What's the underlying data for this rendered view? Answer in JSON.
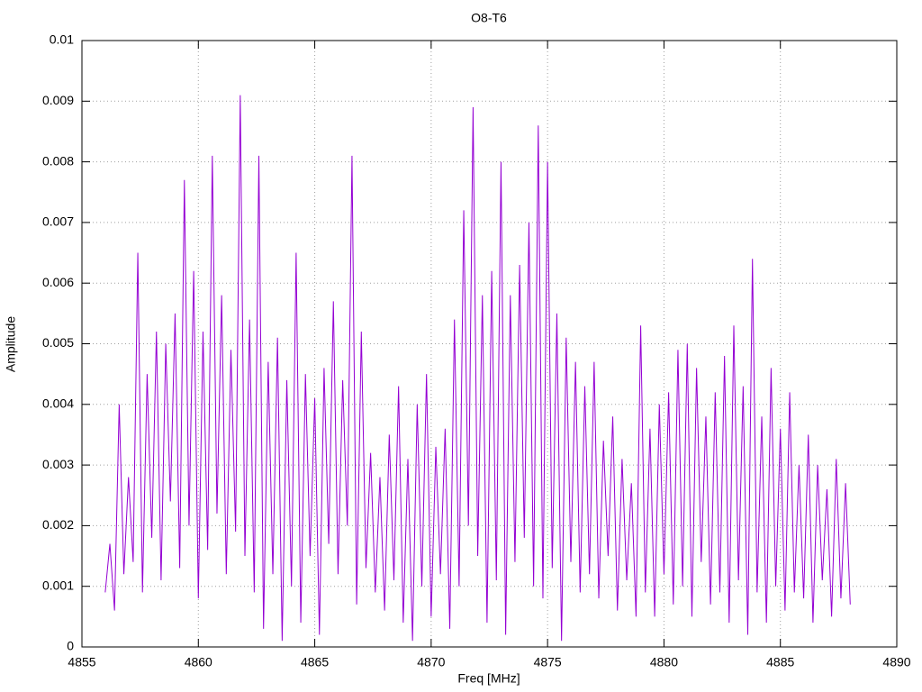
{
  "chart_data": {
    "type": "line",
    "title": "O8-T6",
    "x_label": "Freq [MHz]",
    "y_label": "Amplitude",
    "xlim": [
      4855,
      4890
    ],
    "xticks": [
      4855,
      4860,
      4865,
      4870,
      4875,
      4880,
      4885,
      4890
    ],
    "ylim": [
      0,
      0.01
    ],
    "yticks": [
      0,
      0.001,
      0.002,
      0.003,
      0.004,
      0.005,
      0.006,
      0.007,
      0.008,
      0.009,
      0.01
    ],
    "grid": true,
    "x": [
      4856.0,
      4856.2,
      4856.4,
      4856.6,
      4856.8,
      4857.0,
      4857.2,
      4857.4,
      4857.6,
      4857.8,
      4858.0,
      4858.2,
      4858.4,
      4858.6,
      4858.8,
      4859.0,
      4859.2,
      4859.4,
      4859.6,
      4859.8,
      4860.0,
      4860.2,
      4860.4,
      4860.6,
      4860.8,
      4861.0,
      4861.2,
      4861.4,
      4861.6,
      4861.8,
      4862.0,
      4862.2,
      4862.4,
      4862.6,
      4862.8,
      4863.0,
      4863.2,
      4863.4,
      4863.6,
      4863.8,
      4864.0,
      4864.2,
      4864.4,
      4864.6,
      4864.8,
      4865.0,
      4865.2,
      4865.4,
      4865.6,
      4865.8,
      4866.0,
      4866.2,
      4866.4,
      4866.6,
      4866.8,
      4867.0,
      4867.2,
      4867.4,
      4867.6,
      4867.8,
      4868.0,
      4868.2,
      4868.4,
      4868.6,
      4868.8,
      4869.0,
      4869.2,
      4869.4,
      4869.6,
      4869.8,
      4870.0,
      4870.2,
      4870.4,
      4870.6,
      4870.8,
      4871.0,
      4871.2,
      4871.4,
      4871.6,
      4871.8,
      4872.0,
      4872.2,
      4872.4,
      4872.6,
      4872.8,
      4873.0,
      4873.2,
      4873.4,
      4873.6,
      4873.8,
      4874.0,
      4874.2,
      4874.4,
      4874.6,
      4874.8,
      4875.0,
      4875.2,
      4875.4,
      4875.6,
      4875.8,
      4876.0,
      4876.2,
      4876.4,
      4876.6,
      4876.8,
      4877.0,
      4877.2,
      4877.4,
      4877.6,
      4877.8,
      4878.0,
      4878.2,
      4878.4,
      4878.6,
      4878.8,
      4879.0,
      4879.2,
      4879.4,
      4879.6,
      4879.8,
      4880.0,
      4880.2,
      4880.4,
      4880.6,
      4880.8,
      4881.0,
      4881.2,
      4881.4,
      4881.6,
      4881.8,
      4882.0,
      4882.2,
      4882.4,
      4882.6,
      4882.8,
      4883.0,
      4883.2,
      4883.4,
      4883.6,
      4883.8,
      4884.0,
      4884.2,
      4884.4,
      4884.6,
      4884.8,
      4885.0,
      4885.2,
      4885.4,
      4885.6,
      4885.8,
      4886.0,
      4886.2,
      4886.4,
      4886.6,
      4886.8,
      4887.0,
      4887.2,
      4887.4,
      4887.6,
      4887.8,
      4888.0
    ],
    "series": [
      {
        "color": "#9400d3",
        "values": [
          0.0009,
          0.0017,
          0.0006,
          0.004,
          0.0012,
          0.0028,
          0.0014,
          0.0065,
          0.0009,
          0.0045,
          0.0018,
          0.0052,
          0.0011,
          0.005,
          0.0024,
          0.0055,
          0.0013,
          0.0077,
          0.002,
          0.0062,
          0.0008,
          0.0052,
          0.0016,
          0.0081,
          0.0022,
          0.0058,
          0.0012,
          0.0049,
          0.0019,
          0.0091,
          0.0015,
          0.0054,
          0.0009,
          0.0081,
          0.0003,
          0.0047,
          0.0012,
          0.0051,
          0.0001,
          0.0044,
          0.001,
          0.0065,
          0.0004,
          0.0045,
          0.0015,
          0.0041,
          0.0002,
          0.0046,
          0.0017,
          0.0057,
          0.0012,
          0.0044,
          0.002,
          0.0081,
          0.0007,
          0.0052,
          0.0013,
          0.0032,
          0.0009,
          0.0028,
          0.0006,
          0.0035,
          0.0011,
          0.0043,
          0.0004,
          0.0031,
          0.0001,
          0.004,
          0.001,
          0.0045,
          0.0005,
          0.0033,
          0.0012,
          0.0036,
          0.0003,
          0.0054,
          0.001,
          0.0072,
          0.002,
          0.0089,
          0.0015,
          0.0058,
          0.0004,
          0.0062,
          0.0011,
          0.008,
          0.0002,
          0.0058,
          0.0014,
          0.0063,
          0.0018,
          0.007,
          0.001,
          0.0086,
          0.0008,
          0.008,
          0.0013,
          0.0055,
          0.0001,
          0.0051,
          0.0014,
          0.0047,
          0.0009,
          0.0043,
          0.0012,
          0.0047,
          0.0008,
          0.0034,
          0.0015,
          0.0038,
          0.0006,
          0.0031,
          0.0011,
          0.0027,
          0.0005,
          0.0053,
          0.0009,
          0.0036,
          0.0005,
          0.004,
          0.0012,
          0.0042,
          0.0007,
          0.0049,
          0.001,
          0.005,
          0.0005,
          0.0046,
          0.0014,
          0.0038,
          0.0007,
          0.0042,
          0.0009,
          0.0048,
          0.0004,
          0.0053,
          0.0011,
          0.0043,
          0.0002,
          0.0064,
          0.0009,
          0.0038,
          0.0004,
          0.0046,
          0.001,
          0.0036,
          0.0006,
          0.0042,
          0.0009,
          0.003,
          0.0008,
          0.0035,
          0.0004,
          0.003,
          0.0011,
          0.0026,
          0.0005,
          0.0031,
          0.0008,
          0.0027,
          0.0007
        ]
      }
    ]
  }
}
